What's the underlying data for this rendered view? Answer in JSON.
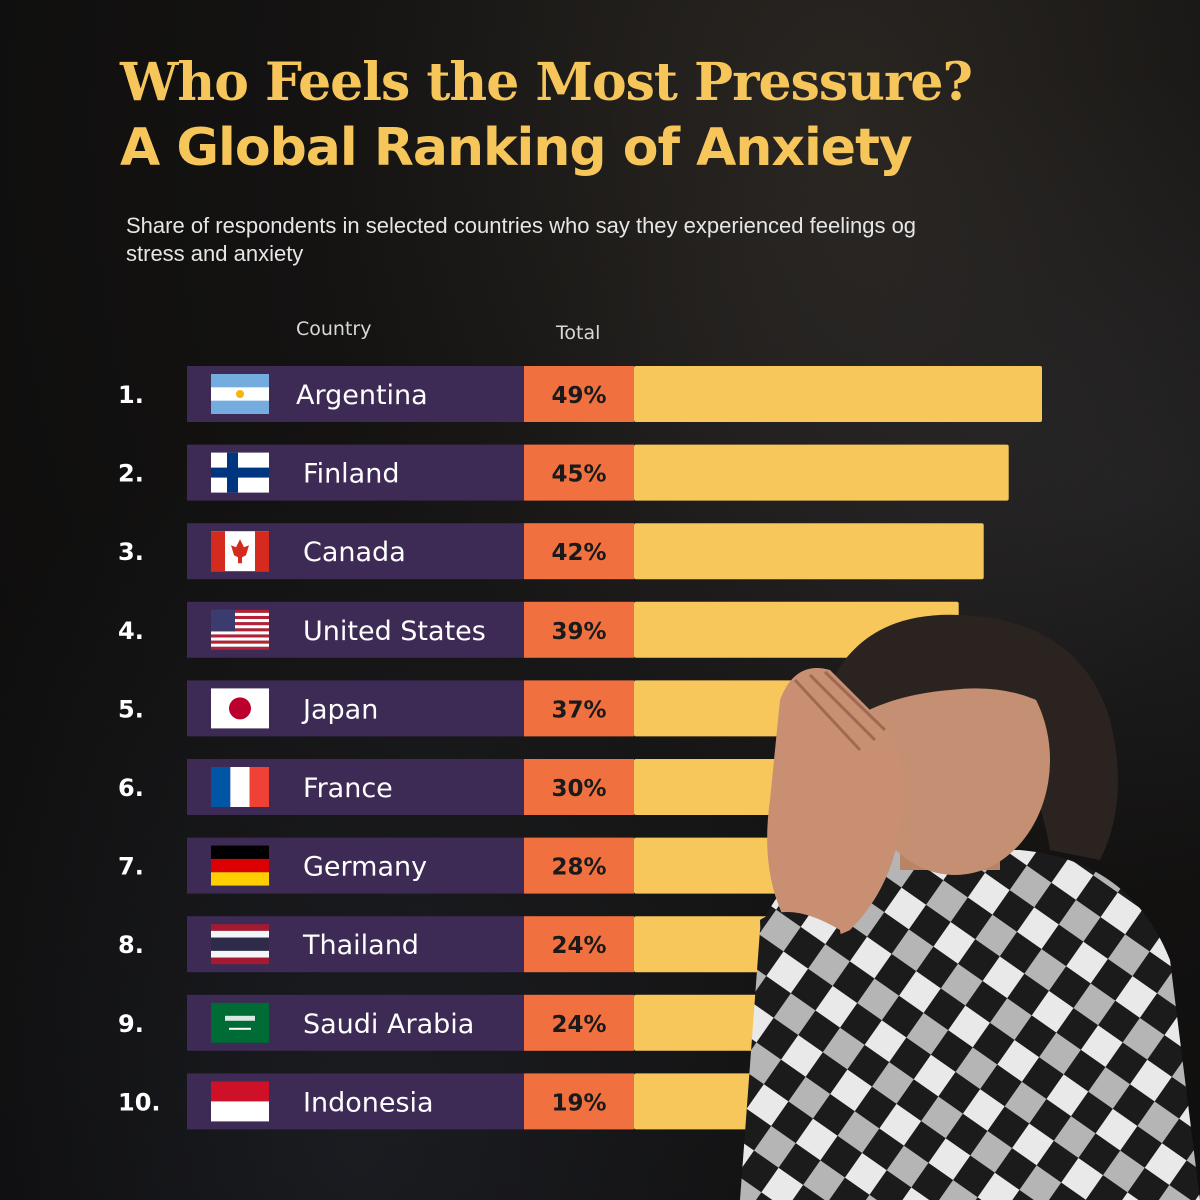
{
  "header": {
    "title_line1": "Who Feels the Most Pressure?",
    "title_line2": "A Global Ranking of Anxiety",
    "subtitle": "Share of respondents in selected countries who say they experienced feelings og stress and anxiety"
  },
  "columns": {
    "country": "Country",
    "total": "Total"
  },
  "colors": {
    "title": "#f6c65a",
    "row_bg": "#3d2a55",
    "value_bg": "#f0713f",
    "bar": "#f8c75c",
    "rank_text": "#ffffff",
    "value_text": "#1a1a1a"
  },
  "chart_data": {
    "type": "bar",
    "orientation": "horizontal",
    "categories": [
      "Argentina",
      "Finland",
      "Canada",
      "United States",
      "Japan",
      "France",
      "Germany",
      "Thailand",
      "Saudi Arabia",
      "Indonesia"
    ],
    "ranks": [
      "1.",
      "2.",
      "3.",
      "4.",
      "5.",
      "6.",
      "7.",
      "8.",
      "9.",
      "10."
    ],
    "values": [
      49,
      45,
      42,
      39,
      37,
      30,
      28,
      24,
      24,
      19
    ],
    "value_labels": [
      "49%",
      "45%",
      "42%",
      "39%",
      "37%",
      "30%",
      "28%",
      "24%",
      "24%",
      "19%"
    ],
    "flags": [
      "argentina-flag-icon",
      "finland-flag-icon",
      "canada-flag-icon",
      "united-states-flag-icon",
      "japan-flag-icon",
      "france-flag-icon",
      "germany-flag-icon",
      "thailand-flag-icon",
      "saudi-arabia-flag-icon",
      "indonesia-flag-icon"
    ],
    "xlabel": "",
    "ylabel": "",
    "grid": false
  }
}
